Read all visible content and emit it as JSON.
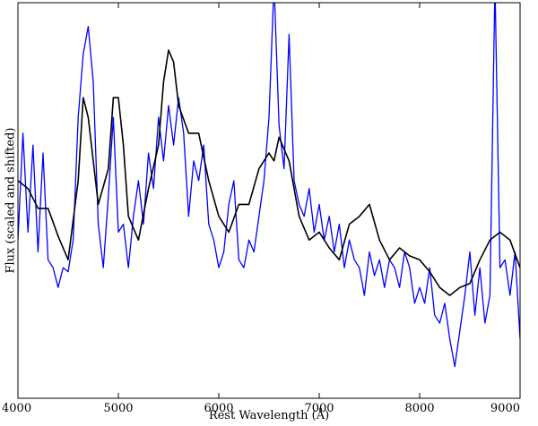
{
  "chart_data": {
    "type": "line",
    "xlabel": "Rest Wavelength (Å)",
    "ylabel": "Flux (scaled and shifted)",
    "xlim": [
      4000,
      9000
    ],
    "xticks": [
      4000,
      5000,
      6000,
      7000,
      8000,
      9000
    ],
    "ylim": [
      0,
      1
    ],
    "yticks": [],
    "series": [
      {
        "color": "#0000ff",
        "x": [
          4000,
          4050,
          4100,
          4150,
          4200,
          4250,
          4300,
          4350,
          4400,
          4450,
          4500,
          4550,
          4600,
          4650,
          4700,
          4750,
          4800,
          4850,
          4900,
          4950,
          5000,
          5050,
          5100,
          5150,
          5200,
          5250,
          5300,
          5350,
          5400,
          5450,
          5500,
          5550,
          5600,
          5650,
          5700,
          5750,
          5800,
          5850,
          5900,
          5950,
          6000,
          6050,
          6100,
          6150,
          6200,
          6250,
          6300,
          6350,
          6400,
          6450,
          6500,
          6550,
          6600,
          6650,
          6700,
          6750,
          6800,
          6850,
          6900,
          6950,
          7000,
          7050,
          7100,
          7150,
          7200,
          7250,
          7300,
          7350,
          7400,
          7450,
          7500,
          7550,
          7600,
          7650,
          7700,
          7750,
          7800,
          7850,
          7900,
          7950,
          8000,
          8050,
          8100,
          8150,
          8200,
          8250,
          8300,
          8350,
          8400,
          8450,
          8500,
          8550,
          8600,
          8650,
          8700,
          8750,
          8800,
          8850,
          8900,
          8950,
          9000
        ],
        "values": [
          0.4,
          0.67,
          0.42,
          0.64,
          0.37,
          0.62,
          0.35,
          0.33,
          0.28,
          0.33,
          0.32,
          0.4,
          0.71,
          0.87,
          0.94,
          0.8,
          0.44,
          0.33,
          0.51,
          0.71,
          0.42,
          0.44,
          0.33,
          0.46,
          0.55,
          0.44,
          0.62,
          0.53,
          0.71,
          0.6,
          0.74,
          0.64,
          0.76,
          0.67,
          0.46,
          0.6,
          0.55,
          0.64,
          0.44,
          0.4,
          0.33,
          0.37,
          0.49,
          0.55,
          0.35,
          0.33,
          0.4,
          0.37,
          0.46,
          0.55,
          0.71,
          1.05,
          0.69,
          0.58,
          0.92,
          0.55,
          0.49,
          0.46,
          0.53,
          0.42,
          0.49,
          0.4,
          0.46,
          0.37,
          0.44,
          0.33,
          0.4,
          0.35,
          0.33,
          0.26,
          0.37,
          0.31,
          0.35,
          0.28,
          0.35,
          0.33,
          0.28,
          0.37,
          0.33,
          0.24,
          0.28,
          0.24,
          0.33,
          0.21,
          0.19,
          0.24,
          0.15,
          0.08,
          0.17,
          0.26,
          0.37,
          0.21,
          0.33,
          0.19,
          0.26,
          1.05,
          0.33,
          0.35,
          0.26,
          0.37,
          0.15
        ]
      },
      {
        "color": "#000000",
        "x": [
          4000,
          4100,
          4200,
          4300,
          4400,
          4500,
          4600,
          4650,
          4700,
          4750,
          4800,
          4900,
          4950,
          5000,
          5050,
          5100,
          5200,
          5300,
          5400,
          5450,
          5500,
          5550,
          5600,
          5700,
          5800,
          5900,
          6000,
          6100,
          6200,
          6300,
          6400,
          6500,
          6550,
          6600,
          6700,
          6800,
          6900,
          7000,
          7100,
          7200,
          7300,
          7400,
          7500,
          7600,
          7700,
          7800,
          7900,
          8000,
          8100,
          8200,
          8300,
          8400,
          8500,
          8600,
          8700,
          8800,
          8900,
          9000
        ],
        "values": [
          0.55,
          0.53,
          0.48,
          0.48,
          0.41,
          0.35,
          0.55,
          0.76,
          0.71,
          0.6,
          0.49,
          0.58,
          0.76,
          0.76,
          0.64,
          0.46,
          0.4,
          0.53,
          0.64,
          0.8,
          0.88,
          0.85,
          0.74,
          0.67,
          0.67,
          0.55,
          0.46,
          0.42,
          0.49,
          0.49,
          0.58,
          0.62,
          0.6,
          0.66,
          0.6,
          0.46,
          0.4,
          0.42,
          0.38,
          0.35,
          0.44,
          0.46,
          0.49,
          0.4,
          0.35,
          0.38,
          0.36,
          0.35,
          0.32,
          0.28,
          0.26,
          0.28,
          0.29,
          0.35,
          0.4,
          0.42,
          0.4,
          0.33
        ]
      }
    ]
  }
}
